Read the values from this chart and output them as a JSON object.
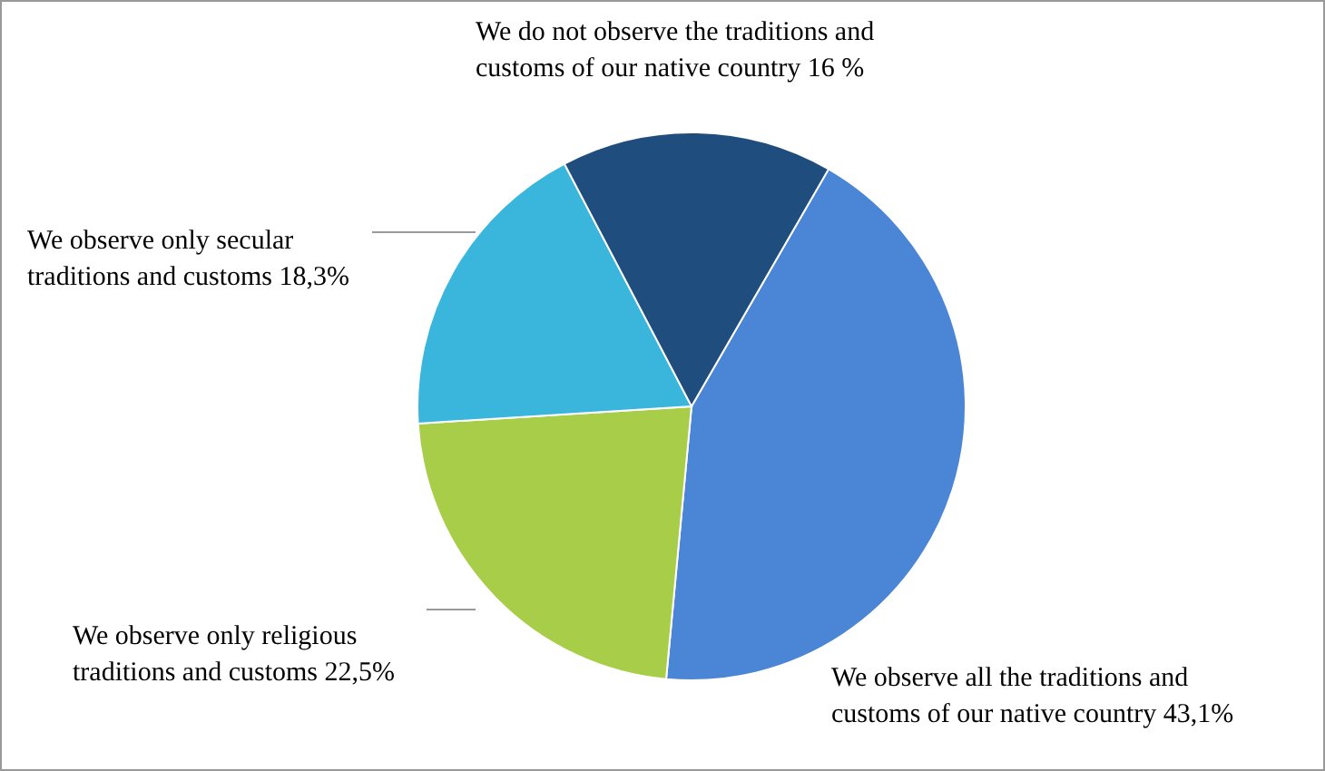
{
  "chart_data": {
    "type": "pie",
    "categories": [
      "We observe all the traditions and customs of our native country",
      "We observe only religious traditions and customs",
      "We observe only secular traditions and customs",
      "We do not observe the traditions and customs of our native country"
    ],
    "values": [
      43.1,
      22.5,
      18.3,
      16
    ],
    "value_labels": [
      "43,1%",
      "22,5%",
      "18,3%",
      "16 %"
    ],
    "colors": [
      "#4a85d6",
      "#a8cd48",
      "#3ab6dc",
      "#1f4d7e"
    ]
  }
}
